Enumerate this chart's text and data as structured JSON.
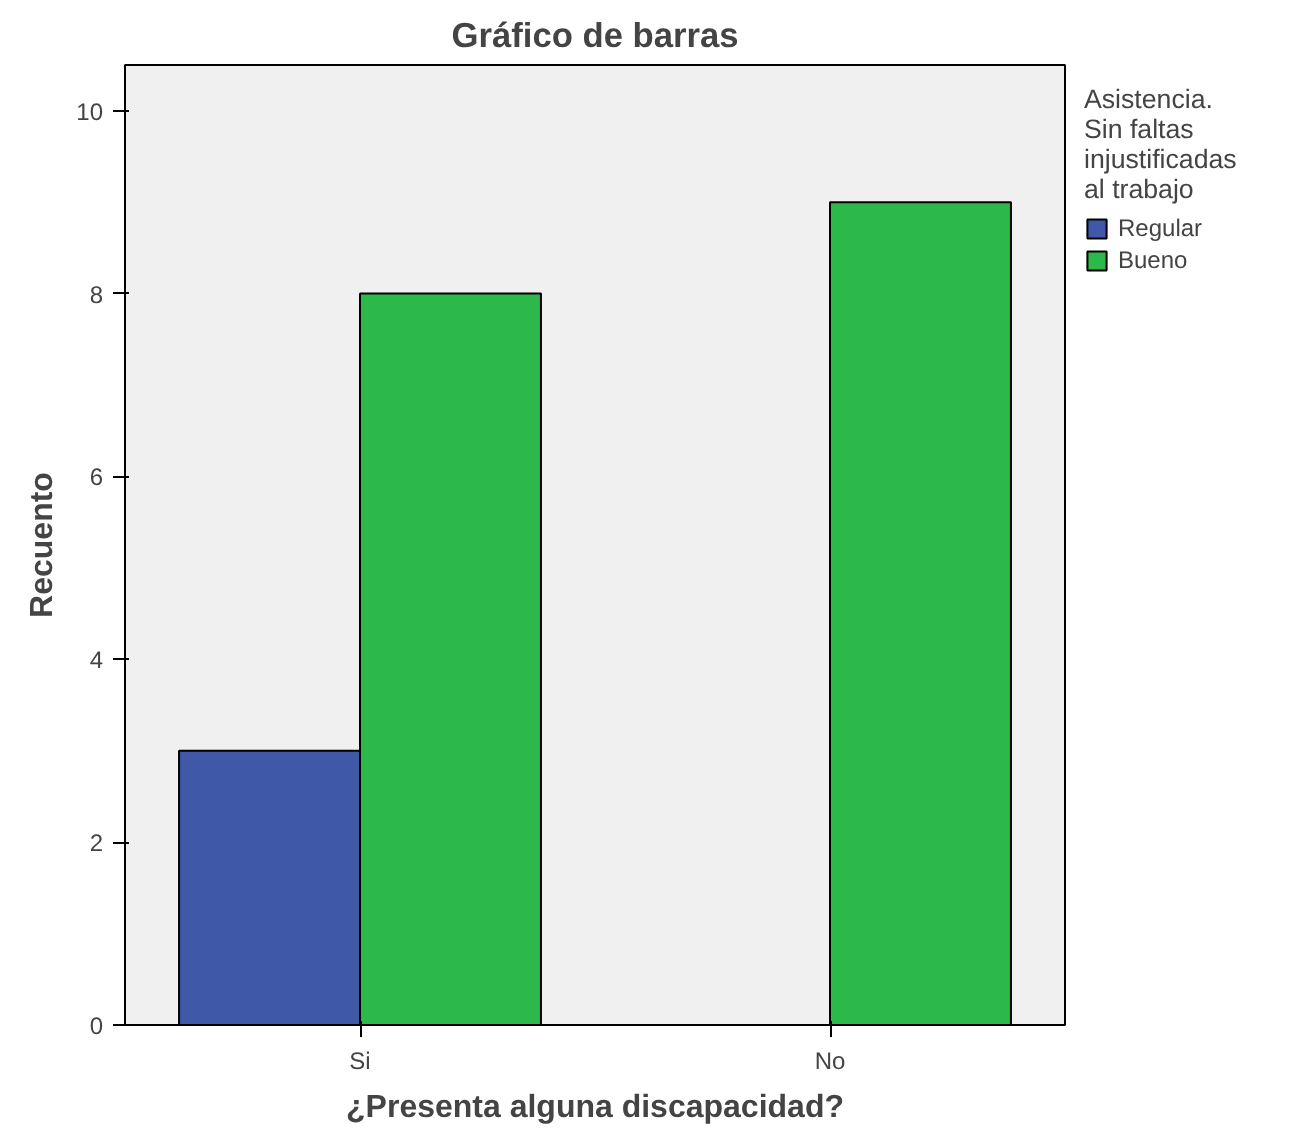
{
  "chart_data": {
    "type": "bar",
    "title": "Gráfico de barras",
    "xlabel": "¿Presenta alguna discapacidad?",
    "ylabel": "Recuento",
    "legend_title": "Asistencia. Sin faltas injustificadas al trabajo",
    "categories": [
      "Si",
      "No"
    ],
    "series": [
      {
        "name": "Regular",
        "color": "#3f58a8",
        "values": [
          3,
          null
        ]
      },
      {
        "name": "Bueno",
        "color": "#2db84a",
        "values": [
          8,
          9
        ]
      }
    ],
    "ylim": [
      0,
      10.5
    ],
    "yticks": [
      0,
      2,
      4,
      6,
      8,
      10
    ],
    "grid": false,
    "legend": "right"
  }
}
